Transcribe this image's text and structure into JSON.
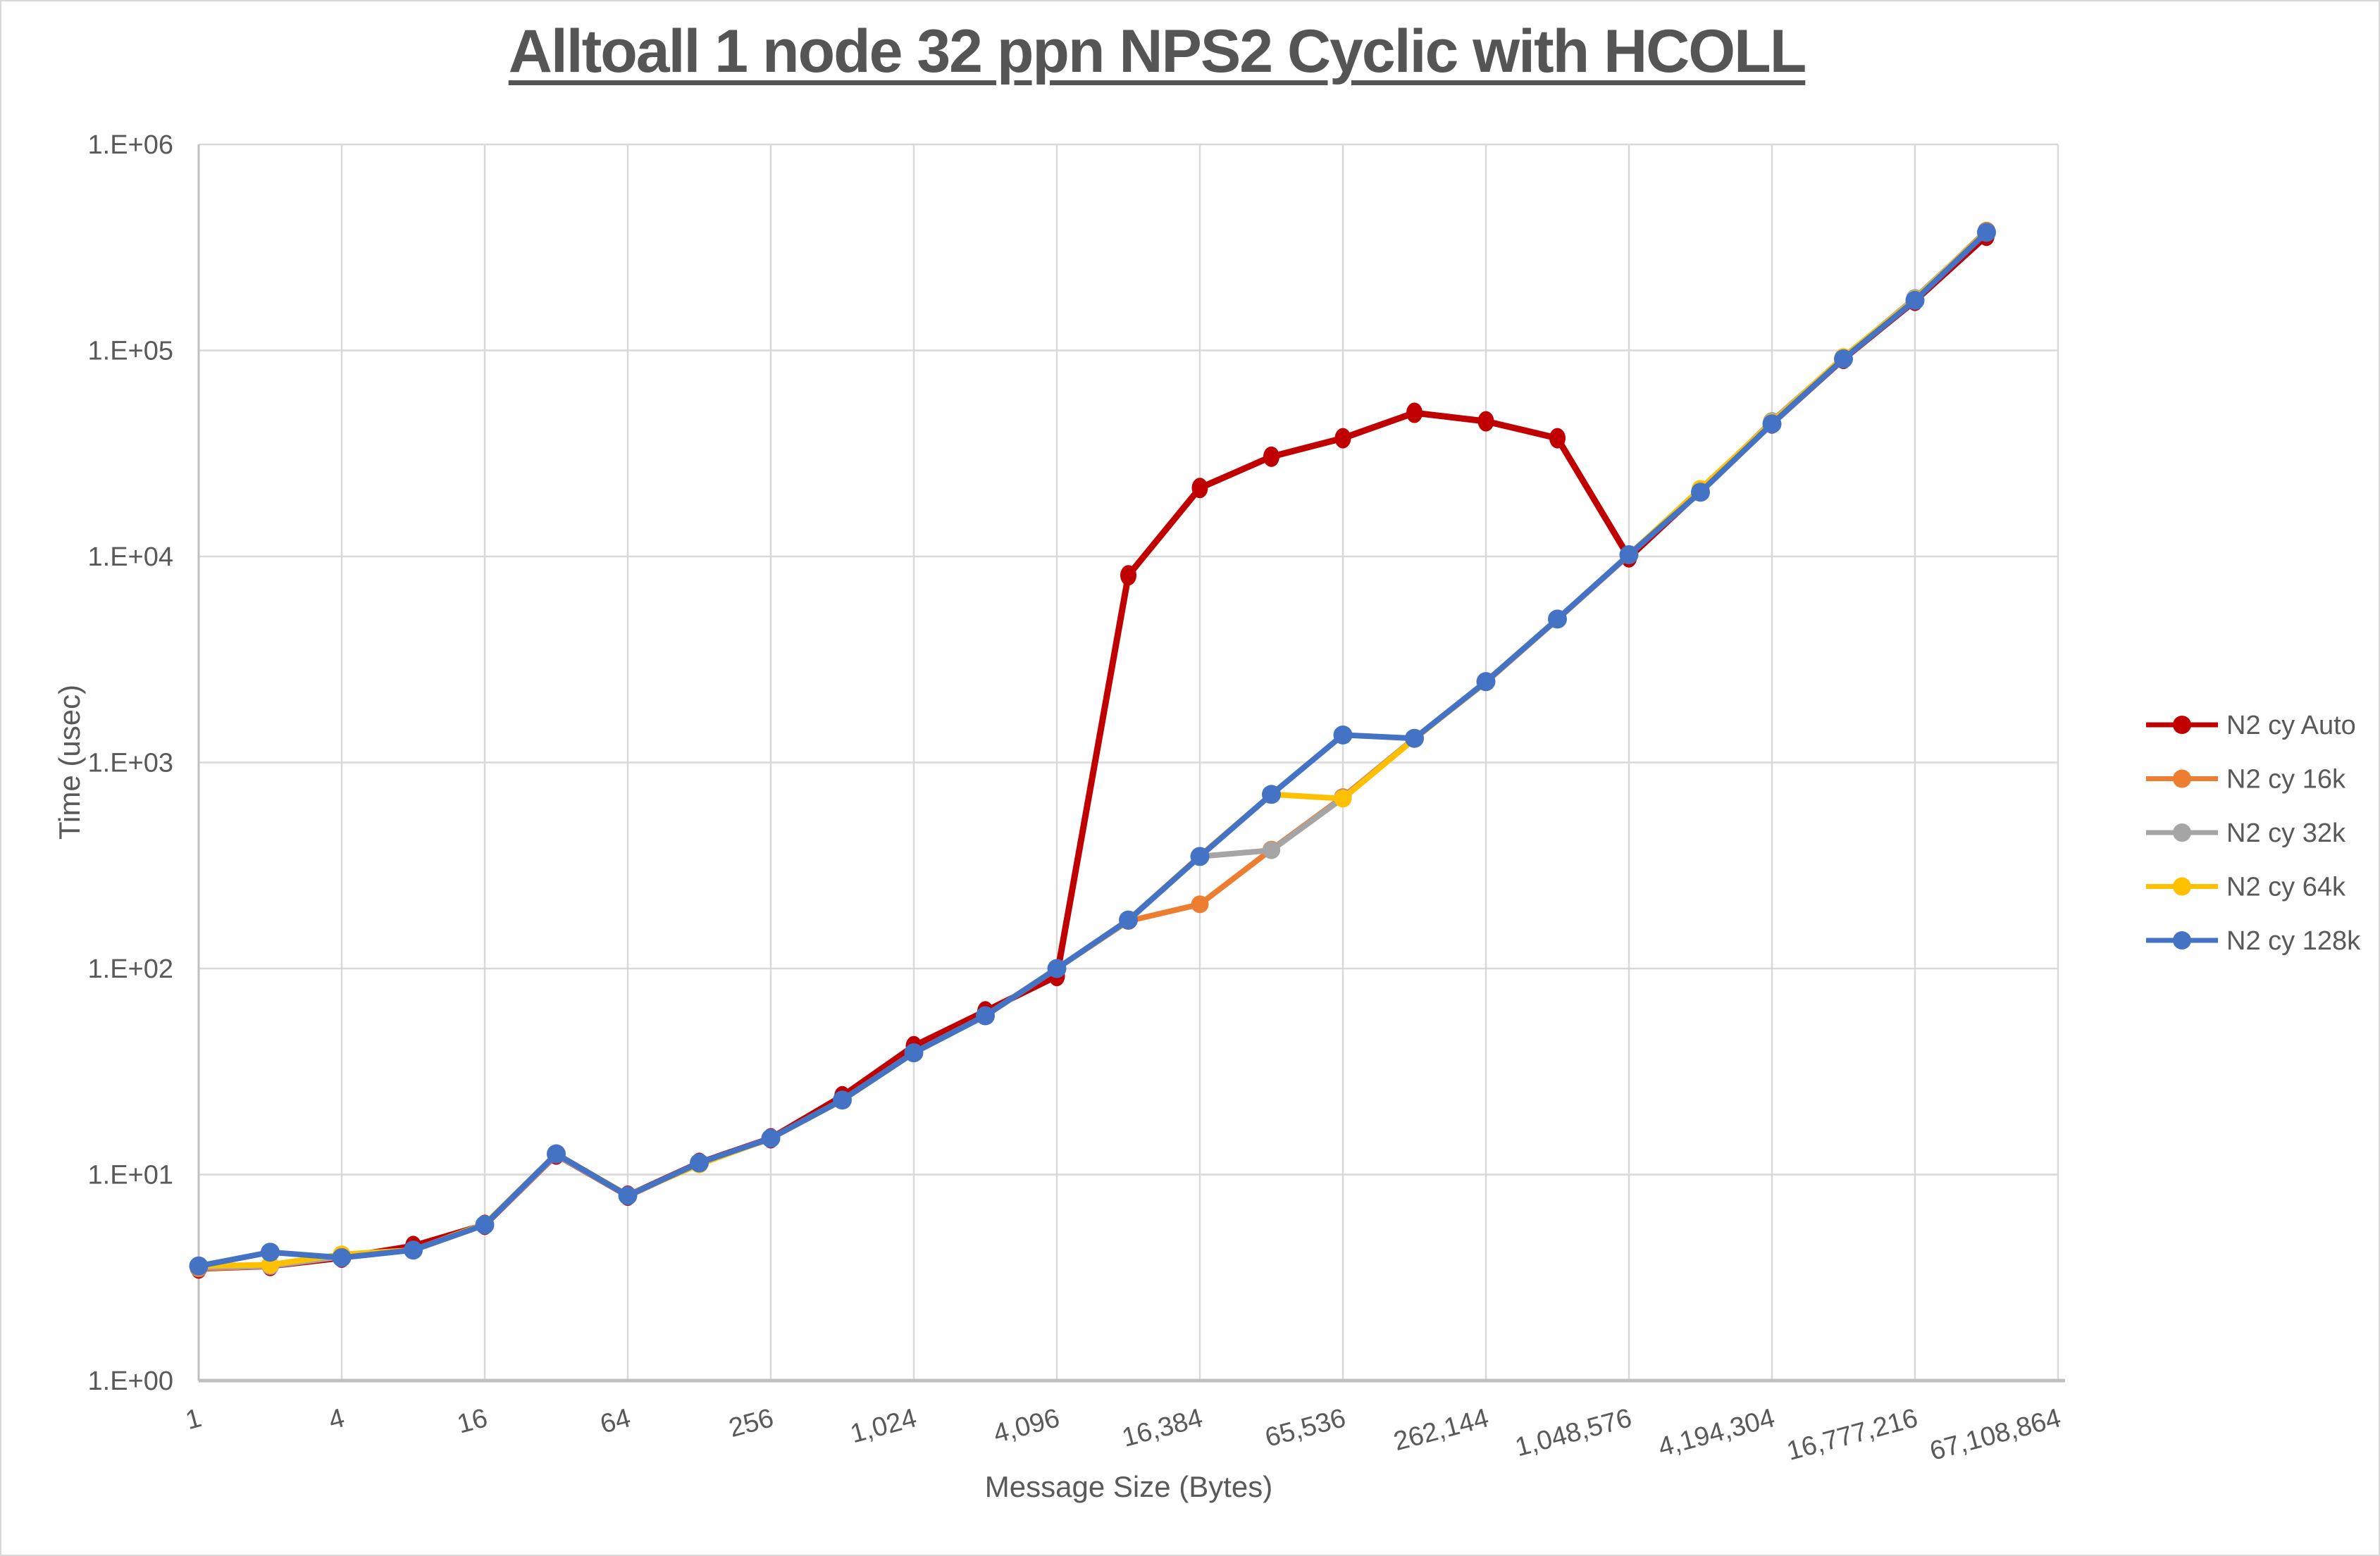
{
  "title": "Alltoall 1 node 32 ppn NPS2 Cyclic with HCOLL",
  "y_axis": {
    "title": "Time (usec)",
    "tick_labels": [
      "1.E+00",
      "1.E+01",
      "1.E+02",
      "1.E+03",
      "1.E+04",
      "1.E+05",
      "1.E+06"
    ],
    "tick_values": [
      1,
      10,
      100,
      1000,
      10000,
      100000,
      1000000
    ]
  },
  "x_axis": {
    "title": "Message Size (Bytes)",
    "tick_labels": [
      "1",
      "4",
      "16",
      "64",
      "256",
      "1,024",
      "4,096",
      "16,384",
      "65,536",
      "262,144",
      "1,048,576",
      "4,194,304",
      "16,777,216",
      "67,108,864"
    ],
    "tick_values": [
      1,
      4,
      16,
      64,
      256,
      1024,
      4096,
      16384,
      65536,
      262144,
      1048576,
      4194304,
      16777216,
      67108864
    ]
  },
  "colors": {
    "auto": "#C00000",
    "cy16k": "#ED7D31",
    "cy32k": "#A5A5A5",
    "cy64k": "#FFC000",
    "cy128k": "#4472C4",
    "gridline": "#D9D9D9",
    "axis_line": "#BFBFBF",
    "text": "#595959"
  },
  "chart_data": {
    "type": "line",
    "x_scale": "log2",
    "y_scale": "log10",
    "xlim": [
      1,
      67108864
    ],
    "ylim": [
      1,
      1000000
    ],
    "grid": true,
    "legend_position": "right",
    "x": [
      1,
      2,
      4,
      8,
      16,
      32,
      64,
      128,
      256,
      512,
      1024,
      2048,
      4096,
      8192,
      16384,
      32768,
      65536,
      131072,
      262144,
      524288,
      1048576,
      2097152,
      4194304,
      8388608,
      16777216,
      33554432
    ],
    "series": [
      {
        "name": "N2 cy Auto",
        "color": "#C00000",
        "values": [
          3.5,
          3.6,
          3.95,
          4.5,
          5.7,
          12.5,
          7.9,
          11.4,
          15,
          24,
          42,
          62,
          92,
          8100,
          21500,
          30500,
          37500,
          49800,
          45300,
          37500,
          9900,
          20800,
          44200,
          91000,
          174000,
          360000
        ]
      },
      {
        "name": "N2 cy 16k",
        "color": "#ED7D31",
        "values": [
          3.5,
          3.6,
          4.0,
          4.3,
          5.7,
          12.5,
          7.9,
          11.3,
          15,
          23,
          39,
          59,
          100,
          170,
          205,
          378,
          680,
          1310,
          2450,
          4950,
          10150,
          21000,
          44500,
          92500,
          177000,
          382000
        ]
      },
      {
        "name": "N2 cy 32k",
        "color": "#A5A5A5",
        "values": [
          3.55,
          3.6,
          4.0,
          4.3,
          5.7,
          12.5,
          7.9,
          11.3,
          15,
          23,
          39,
          59,
          100,
          171,
          350,
          375,
          672,
          1305,
          2460,
          4960,
          10180,
          20700,
          45500,
          92000,
          180000,
          376000
        ]
      },
      {
        "name": "N2 cy 64k",
        "color": "#FFC000",
        "values": [
          3.6,
          3.65,
          4.1,
          4.3,
          5.75,
          12.6,
          7.95,
          11.2,
          15,
          23,
          39,
          59,
          100,
          172,
          352,
          700,
          668,
          1300,
          2470,
          4980,
          10200,
          21300,
          44800,
          93000,
          177500,
          378000
        ]
      },
      {
        "name": "N2 cy 128k",
        "color": "#4472C4",
        "values": [
          3.6,
          4.2,
          3.95,
          4.3,
          5.7,
          12.6,
          7.9,
          11.4,
          15,
          23,
          39,
          59,
          100,
          172,
          350,
          700,
          1360,
          1310,
          2470,
          4970,
          10200,
          20500,
          44000,
          91000,
          175000,
          374000
        ]
      }
    ]
  }
}
